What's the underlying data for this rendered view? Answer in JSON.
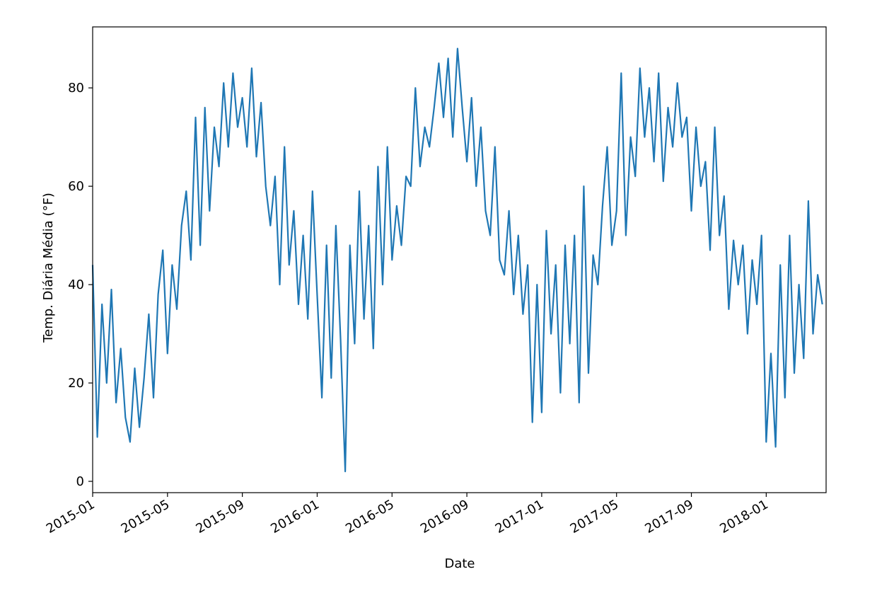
{
  "chart_data": {
    "type": "line",
    "xlabel": "Date",
    "ylabel": "Temp. Diária Média (°F)",
    "x": [
      0,
      0.25,
      0.5,
      0.75,
      1,
      1.25,
      1.5,
      1.75,
      2,
      2.25,
      2.5,
      2.75,
      3,
      3.25,
      3.5,
      3.75,
      4,
      4.25,
      4.5,
      4.75,
      5,
      5.25,
      5.5,
      5.75,
      6,
      6.25,
      6.5,
      6.75,
      7,
      7.25,
      7.5,
      7.75,
      8,
      8.25,
      8.5,
      8.75,
      9,
      9.25,
      9.5,
      9.75,
      10,
      10.25,
      10.5,
      10.75,
      11,
      11.25,
      11.5,
      11.75,
      12,
      12.25,
      12.5,
      12.75,
      13,
      13.25,
      13.5,
      13.75,
      14,
      14.25,
      14.5,
      14.75,
      15,
      15.25,
      15.5,
      15.75,
      16,
      16.25,
      16.5,
      16.75,
      17,
      17.25,
      17.5,
      17.75,
      18,
      18.25,
      18.5,
      18.75,
      19,
      19.25,
      19.5,
      19.75,
      20,
      20.25,
      20.5,
      20.75,
      21,
      21.25,
      21.5,
      21.75,
      22,
      22.25,
      22.5,
      22.75,
      23,
      23.25,
      23.5,
      23.75,
      24,
      24.25,
      24.5,
      24.75,
      25,
      25.25,
      25.5,
      25.75,
      26,
      26.25,
      26.5,
      26.75,
      27,
      27.25,
      27.5,
      27.75,
      28,
      28.25,
      28.5,
      28.75,
      29,
      29.25,
      29.5,
      29.75,
      30,
      30.25,
      30.5,
      30.75,
      31,
      31.25,
      31.5,
      31.75,
      32,
      32.25,
      32.5,
      32.75,
      33,
      33.25,
      33.5,
      33.75,
      34,
      34.25,
      34.5,
      34.75,
      35,
      35.25,
      35.5,
      35.75,
      36,
      36.25,
      36.5,
      36.75,
      37,
      37.25,
      37.5,
      37.75,
      38,
      38.25,
      38.5,
      38.75,
      39
    ],
    "series": [
      {
        "color": "#1f77b4",
        "values": [
          44,
          9,
          36,
          20,
          39,
          16,
          27,
          13,
          8,
          23,
          11,
          21,
          34,
          17,
          38,
          47,
          26,
          44,
          35,
          52,
          59,
          45,
          74,
          48,
          76,
          55,
          72,
          64,
          81,
          68,
          83,
          72,
          78,
          68,
          84,
          66,
          77,
          60,
          52,
          62,
          40,
          68,
          44,
          55,
          36,
          50,
          33,
          59,
          38,
          17,
          48,
          21,
          52,
          29,
          2,
          48,
          28,
          59,
          33,
          52,
          27,
          64,
          40,
          68,
          45,
          56,
          48,
          62,
          60,
          80,
          64,
          72,
          68,
          76,
          85,
          74,
          86,
          70,
          88,
          76,
          65,
          78,
          60,
          72,
          55,
          50,
          68,
          45,
          42,
          55,
          38,
          50,
          34,
          44,
          12,
          40,
          14,
          51,
          30,
          44,
          18,
          48,
          28,
          50,
          16,
          60,
          22,
          46,
          40,
          56,
          68,
          48,
          55,
          83,
          50,
          70,
          62,
          84,
          70,
          80,
          65,
          83,
          61,
          76,
          68,
          81,
          70,
          74,
          55,
          72,
          60,
          65,
          47,
          72,
          50,
          58,
          35,
          49,
          40,
          48,
          30,
          45,
          36,
          50,
          8,
          26,
          7,
          44,
          17,
          50,
          22,
          40,
          25,
          57,
          30,
          42,
          36
        ]
      }
    ],
    "xlim": [
      0,
      39.2
    ],
    "xticks": [
      {
        "value": 0,
        "label": "2015-01"
      },
      {
        "value": 4,
        "label": "2015-05"
      },
      {
        "value": 8,
        "label": "2015-09"
      },
      {
        "value": 12,
        "label": "2016-01"
      },
      {
        "value": 16,
        "label": "2016-05"
      },
      {
        "value": 20,
        "label": "2016-09"
      },
      {
        "value": 24,
        "label": "2017-01"
      },
      {
        "value": 28,
        "label": "2017-05"
      },
      {
        "value": 32,
        "label": "2017-09"
      },
      {
        "value": 36,
        "label": "2018-01"
      }
    ],
    "ylim": [
      -2.3,
      92.4
    ],
    "yticks": [
      0,
      20,
      40,
      60,
      80
    ]
  }
}
